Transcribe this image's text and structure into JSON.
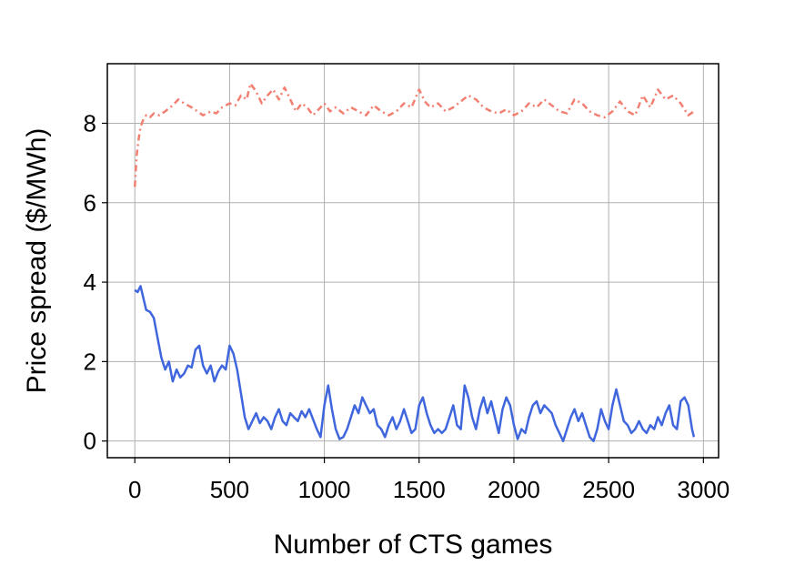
{
  "chart_data": {
    "type": "line",
    "title": "",
    "xlabel": "Number of CTS games",
    "ylabel": "Price spread ($/MWh)",
    "xlim": [
      -145,
      3080
    ],
    "ylim": [
      -0.42,
      9.5
    ],
    "xticks": [
      0,
      500,
      1000,
      1500,
      2000,
      2500,
      3000
    ],
    "yticks": [
      0,
      2,
      4,
      6,
      8
    ],
    "grid": true,
    "legend": "none",
    "series": [
      {
        "color": "#f28072",
        "style": "dash-dot",
        "x": [
          0,
          10,
          20,
          30,
          45,
          60,
          80,
          100,
          130,
          160,
          200,
          230,
          260,
          300,
          330,
          360,
          400,
          430,
          460,
          500,
          530,
          560,
          590,
          610,
          640,
          670,
          700,
          730,
          760,
          790,
          820,
          850,
          880,
          910,
          940,
          970,
          1000,
          1030,
          1060,
          1100,
          1140,
          1180,
          1220,
          1260,
          1300,
          1340,
          1380,
          1420,
          1460,
          1500,
          1530,
          1560,
          1600,
          1640,
          1680,
          1720,
          1760,
          1800,
          1840,
          1880,
          1920,
          1960,
          2000,
          2040,
          2080,
          2120,
          2160,
          2200,
          2240,
          2280,
          2320,
          2360,
          2400,
          2440,
          2480,
          2520,
          2560,
          2600,
          2640,
          2680,
          2720,
          2760,
          2800,
          2840,
          2880,
          2920,
          2950
        ],
        "y": [
          6.4,
          7.2,
          7.6,
          7.9,
          8.1,
          8.2,
          8.15,
          8.25,
          8.2,
          8.3,
          8.45,
          8.6,
          8.5,
          8.4,
          8.3,
          8.2,
          8.3,
          8.25,
          8.4,
          8.5,
          8.45,
          8.7,
          8.6,
          9.0,
          8.8,
          8.5,
          8.7,
          8.85,
          8.6,
          8.9,
          8.6,
          8.3,
          8.5,
          8.4,
          8.2,
          8.35,
          8.5,
          8.3,
          8.4,
          8.25,
          8.4,
          8.3,
          8.2,
          8.45,
          8.3,
          8.2,
          8.3,
          8.5,
          8.4,
          8.85,
          8.55,
          8.4,
          8.5,
          8.3,
          8.4,
          8.55,
          8.7,
          8.6,
          8.4,
          8.3,
          8.25,
          8.35,
          8.2,
          8.3,
          8.5,
          8.4,
          8.6,
          8.45,
          8.3,
          8.25,
          8.6,
          8.5,
          8.3,
          8.2,
          8.15,
          8.3,
          8.55,
          8.3,
          8.2,
          8.7,
          8.4,
          8.85,
          8.6,
          8.7,
          8.5,
          8.2,
          8.3
        ]
      },
      {
        "color": "#3f66dd",
        "style": "solid",
        "x": [
          0,
          15,
          30,
          45,
          60,
          80,
          100,
          120,
          140,
          160,
          180,
          200,
          220,
          240,
          260,
          280,
          300,
          320,
          340,
          360,
          380,
          400,
          420,
          440,
          460,
          480,
          500,
          520,
          540,
          560,
          580,
          600,
          620,
          640,
          660,
          680,
          700,
          720,
          740,
          760,
          780,
          800,
          820,
          840,
          860,
          880,
          900,
          920,
          940,
          960,
          980,
          1000,
          1020,
          1040,
          1060,
          1080,
          1100,
          1120,
          1140,
          1160,
          1180,
          1200,
          1220,
          1240,
          1260,
          1280,
          1300,
          1320,
          1340,
          1360,
          1380,
          1400,
          1420,
          1440,
          1460,
          1480,
          1500,
          1520,
          1540,
          1560,
          1580,
          1600,
          1620,
          1640,
          1660,
          1680,
          1700,
          1720,
          1740,
          1760,
          1780,
          1800,
          1820,
          1840,
          1860,
          1880,
          1900,
          1920,
          1940,
          1960,
          1980,
          2000,
          2020,
          2040,
          2060,
          2080,
          2100,
          2120,
          2140,
          2160,
          2180,
          2200,
          2220,
          2240,
          2260,
          2280,
          2300,
          2320,
          2340,
          2360,
          2380,
          2400,
          2420,
          2440,
          2460,
          2480,
          2500,
          2520,
          2540,
          2560,
          2580,
          2600,
          2620,
          2640,
          2660,
          2680,
          2700,
          2720,
          2740,
          2760,
          2780,
          2800,
          2820,
          2840,
          2860,
          2880,
          2900,
          2920,
          2940,
          2950
        ],
        "y": [
          3.8,
          3.75,
          3.9,
          3.6,
          3.3,
          3.25,
          3.1,
          2.6,
          2.1,
          1.8,
          2.0,
          1.5,
          1.8,
          1.6,
          1.7,
          1.9,
          1.85,
          2.3,
          2.4,
          1.9,
          1.7,
          1.9,
          1.5,
          1.75,
          1.9,
          1.8,
          2.4,
          2.2,
          1.8,
          1.2,
          0.6,
          0.3,
          0.5,
          0.7,
          0.45,
          0.6,
          0.5,
          0.3,
          0.6,
          0.8,
          0.5,
          0.4,
          0.7,
          0.6,
          0.5,
          0.75,
          0.6,
          0.8,
          0.55,
          0.3,
          0.1,
          0.9,
          1.4,
          0.8,
          0.3,
          0.05,
          0.1,
          0.3,
          0.6,
          0.9,
          0.7,
          1.1,
          0.9,
          0.7,
          0.8,
          0.4,
          0.3,
          0.1,
          0.4,
          0.6,
          0.3,
          0.5,
          0.8,
          0.5,
          0.2,
          0.3,
          0.9,
          1.1,
          0.7,
          0.4,
          0.2,
          0.3,
          0.2,
          0.3,
          0.6,
          0.9,
          0.4,
          0.3,
          1.4,
          1.1,
          0.6,
          0.3,
          0.8,
          1.1,
          0.7,
          1.0,
          0.6,
          0.2,
          0.8,
          1.1,
          0.9,
          0.4,
          0.05,
          0.3,
          0.2,
          0.6,
          0.9,
          1.0,
          0.7,
          0.9,
          0.8,
          0.7,
          0.4,
          0.2,
          0.0,
          0.3,
          0.6,
          0.8,
          0.5,
          0.7,
          0.4,
          0.1,
          0.0,
          0.3,
          0.8,
          0.5,
          0.3,
          0.9,
          1.3,
          0.9,
          0.5,
          0.4,
          0.2,
          0.3,
          0.5,
          0.3,
          0.2,
          0.4,
          0.3,
          0.6,
          0.4,
          0.7,
          0.9,
          0.4,
          0.3,
          1.0,
          1.1,
          0.9,
          0.3,
          0.1
        ]
      }
    ]
  }
}
